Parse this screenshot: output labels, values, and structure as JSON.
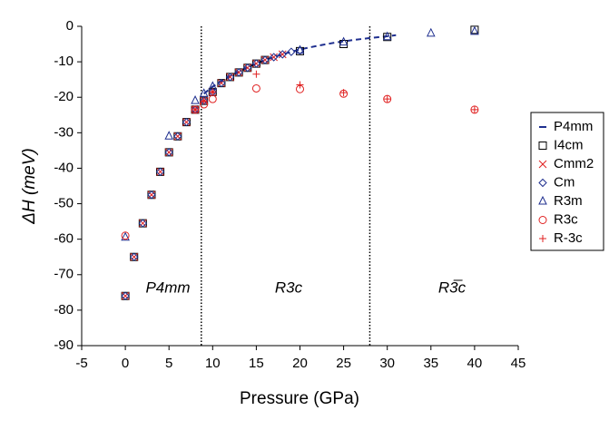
{
  "chart_data": {
    "type": "scatter",
    "xlabel": "Pressure (GPa)",
    "ylabel": "ΔH (meV)",
    "xlim": [
      -5,
      45
    ],
    "xticks": [
      -5,
      0,
      5,
      10,
      15,
      20,
      25,
      30,
      35,
      40,
      45
    ],
    "ylim": [
      -90,
      0
    ],
    "yticks": [
      -90,
      -80,
      -70,
      -60,
      -50,
      -40,
      -30,
      -20,
      -10,
      0
    ],
    "vlines": [
      8.7,
      28
    ],
    "annotations": [
      "P4mm",
      "R3c",
      "R3̅c"
    ],
    "legend": "right",
    "series": [
      {
        "name": "P4mm",
        "color": "#1f2f8f",
        "marker": "dash",
        "x": [
          9,
          10,
          11,
          12,
          13,
          14,
          15,
          16,
          17,
          18,
          19,
          20,
          22,
          24,
          26,
          28,
          30,
          31
        ],
        "values": [
          -19,
          -17,
          -15.5,
          -14,
          -12.8,
          -11.5,
          -10.5,
          -9.5,
          -8.7,
          -7.9,
          -7.2,
          -6.5,
          -5.5,
          -4.6,
          -3.9,
          -3.3,
          -2.8,
          -2.5
        ]
      },
      {
        "name": "I4cm",
        "color": "#000000",
        "marker": "square",
        "x": [
          0,
          1,
          2,
          3,
          4,
          5,
          6,
          7,
          8,
          9,
          10,
          11,
          12,
          13,
          14,
          15,
          16,
          20,
          25,
          30,
          40
        ],
        "values": [
          -76,
          -65,
          -55.5,
          -47.5,
          -41,
          -35.5,
          -31,
          -27,
          -23.5,
          -21,
          -18.5,
          -16,
          -14.3,
          -13,
          -11.7,
          -10.5,
          -9.5,
          -7,
          -5,
          -3,
          -1
        ]
      },
      {
        "name": "Cmm2",
        "color": "#e02020",
        "marker": "cross",
        "x": [
          0,
          1,
          2,
          3,
          4,
          5,
          6,
          7,
          8,
          9,
          10,
          11,
          12,
          13,
          14,
          15,
          16,
          17,
          18
        ],
        "values": [
          -76,
          -65,
          -55.5,
          -47.5,
          -41,
          -35.5,
          -31,
          -27,
          -23.5,
          -21,
          -18.5,
          -16,
          -14.3,
          -13,
          -11.7,
          -10.5,
          -9.5,
          -8.7,
          -7.9
        ]
      },
      {
        "name": "Cm",
        "color": "#1f2f8f",
        "marker": "diamond",
        "x": [
          0,
          1,
          2,
          3,
          4,
          5,
          6,
          7,
          8,
          9,
          10,
          11,
          12,
          13,
          14,
          15,
          16,
          17,
          18,
          19,
          20
        ],
        "values": [
          -76,
          -65,
          -55.5,
          -47.5,
          -41,
          -35.5,
          -31,
          -27,
          -23.5,
          -21,
          -18.5,
          -16,
          -14.3,
          -13,
          -11.7,
          -10.5,
          -9.5,
          -8.7,
          -7.9,
          -7.2,
          -6.8
        ]
      },
      {
        "name": "R3m",
        "color": "#1f2f8f",
        "marker": "triangle",
        "x": [
          0,
          5,
          8,
          9,
          10,
          20,
          25,
          30,
          35,
          40
        ],
        "values": [
          -59.5,
          -31,
          -21,
          -19,
          -17,
          -6.8,
          -4.5,
          -3,
          -2,
          -1.5
        ]
      },
      {
        "name": "R3c",
        "color": "#e02020",
        "marker": "circle",
        "x": [
          0,
          8,
          9,
          10,
          15,
          20,
          25,
          30,
          40
        ],
        "values": [
          -59,
          -23.5,
          -22,
          -20.5,
          -17.5,
          -17.7,
          -19,
          -20.5,
          -23.5
        ]
      },
      {
        "name": "R-3c",
        "color": "#e02020",
        "marker": "plus",
        "x": [
          8,
          9,
          10,
          15,
          20,
          25,
          30,
          40
        ],
        "values": [
          -23.5,
          -21,
          -18.5,
          -13.5,
          -16.5,
          -18.7,
          -20.5,
          -23.5
        ]
      }
    ]
  }
}
